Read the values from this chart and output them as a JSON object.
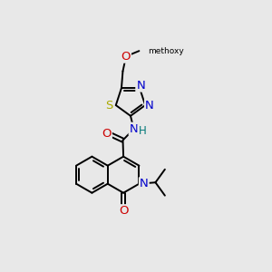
{
  "bg_color": "#e8e8e8",
  "bond_color": "#000000",
  "bond_lw": 1.4,
  "atom_colors": {
    "N": "#0000cc",
    "O": "#cc0000",
    "S": "#aaaa00",
    "H": "#007777",
    "C": "#000000"
  },
  "font_size": 8.5
}
